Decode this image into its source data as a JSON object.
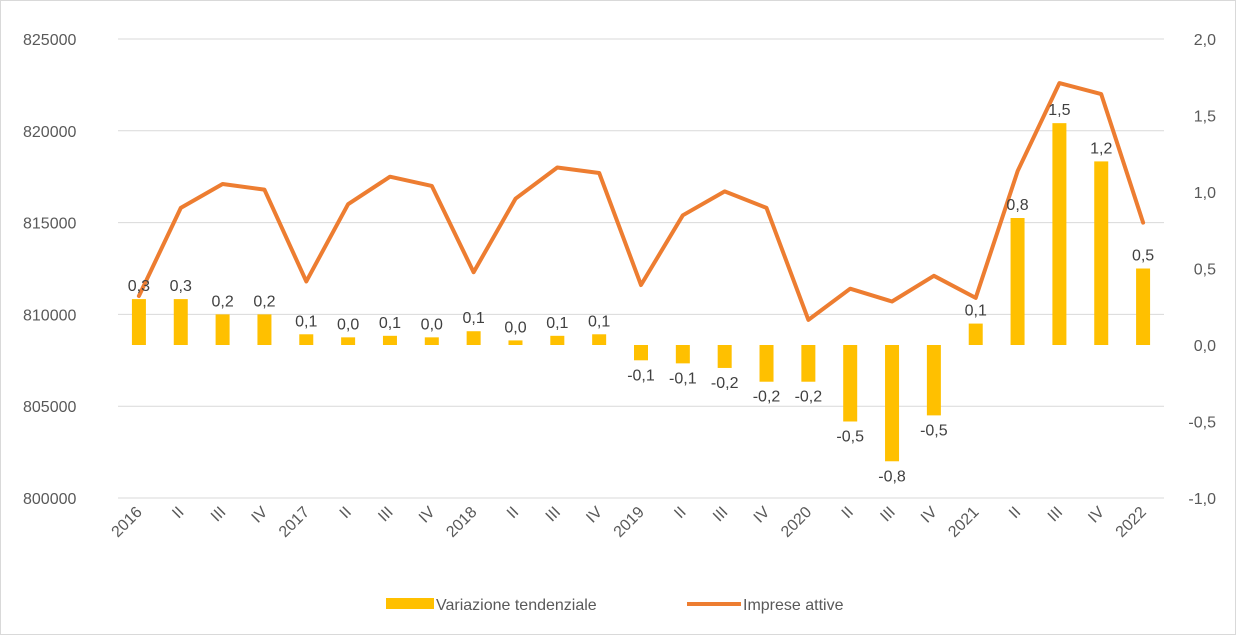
{
  "chart_data": {
    "type": "bar+line",
    "categories": [
      "2016",
      "II",
      "III",
      "IV",
      "2017",
      "II",
      "III",
      "IV",
      "2018",
      "II",
      "III",
      "IV",
      "2019",
      "II",
      "III",
      "IV",
      "2020",
      "II",
      "III",
      "IV",
      "2021",
      "II",
      "III",
      "IV",
      "2022"
    ],
    "series": [
      {
        "name": "Variazione tendenziale",
        "type": "bar",
        "axis": "right",
        "color": "#FFC000",
        "values": [
          0.3,
          0.3,
          0.2,
          0.2,
          0.07,
          0.05,
          0.06,
          0.05,
          0.09,
          0.03,
          0.06,
          0.07,
          -0.1,
          -0.12,
          -0.15,
          -0.24,
          -0.24,
          -0.5,
          -0.76,
          -0.46,
          0.14,
          0.83,
          1.45,
          1.2,
          0.5
        ],
        "labels": [
          "0,3",
          "0,3",
          "0,2",
          "0,2",
          "0,1",
          "0,0",
          "0,1",
          "0,0",
          "0,1",
          "0,0",
          "0,1",
          "0,1",
          "-0,1",
          "-0,1",
          "-0,2",
          "-0,2",
          "-0,2",
          "-0,5",
          "-0,8",
          "-0,5",
          "0,1",
          "0,8",
          "1,5",
          "1,2",
          "0,5"
        ]
      },
      {
        "name": "Imprese attive",
        "type": "line",
        "axis": "left",
        "color": "#ED7D31",
        "values": [
          811000,
          815800,
          817100,
          816800,
          811800,
          816000,
          817500,
          817000,
          812300,
          816300,
          818000,
          817700,
          811600,
          815400,
          816700,
          815800,
          809700,
          811400,
          810700,
          812100,
          810900,
          817800,
          822600,
          822000,
          815000
        ]
      }
    ],
    "y_left": {
      "min": 800000,
      "max": 825000,
      "ticks": [
        "800000",
        "805000",
        "810000",
        "815000",
        "820000",
        "825000"
      ]
    },
    "y_right": {
      "min": -1.0,
      "max": 2.0,
      "ticks": [
        "-1,0",
        "-0,5",
        "0,0",
        "0,5",
        "1,0",
        "1,5",
        "2,0"
      ]
    },
    "grid": true,
    "legend_position": "bottom"
  },
  "legend": {
    "bar_label": "Variazione tendenziale",
    "line_label": "Imprese attive"
  }
}
